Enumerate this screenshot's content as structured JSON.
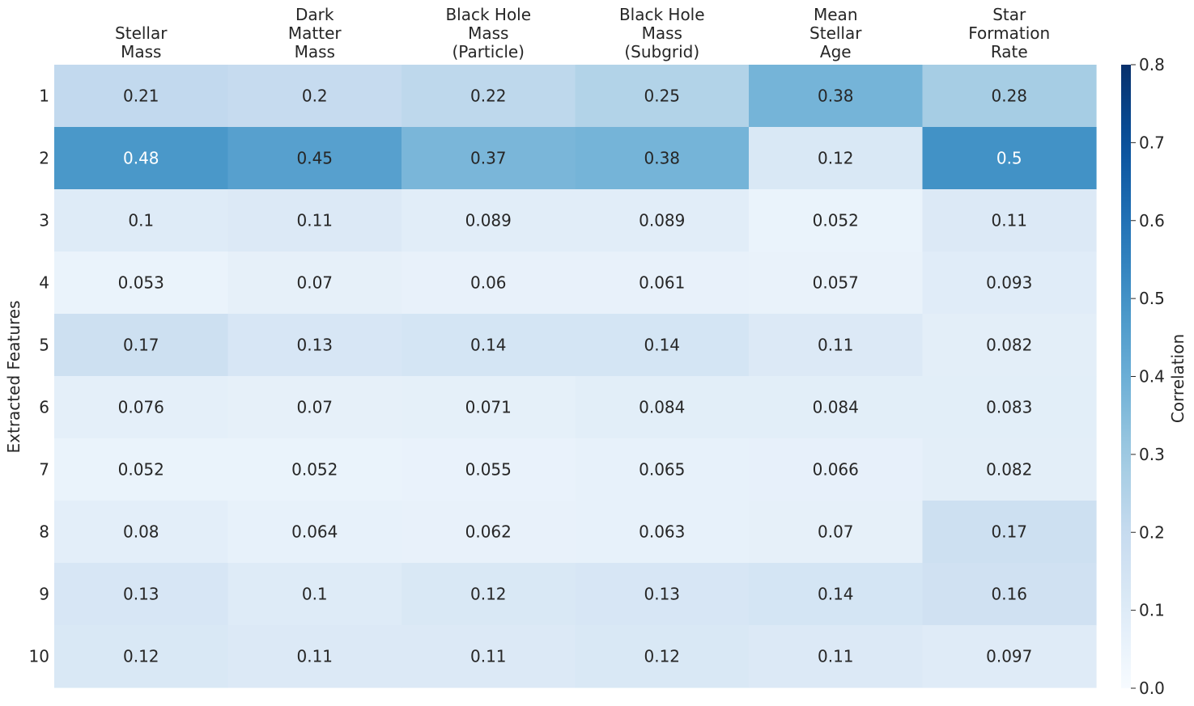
{
  "chart_data": {
    "type": "heatmap",
    "title": "",
    "xlabel": "",
    "ylabel": "Extracted Features",
    "columns": [
      [
        "Stellar",
        "Mass"
      ],
      [
        "Dark",
        "Matter",
        "Mass"
      ],
      [
        "Black Hole",
        "Mass",
        "(Particle)"
      ],
      [
        "Black Hole",
        "Mass",
        "(Subgrid)"
      ],
      [
        "Mean",
        "Stellar",
        "Age"
      ],
      [
        "Star",
        "Formation",
        "Rate"
      ]
    ],
    "rows": [
      "1",
      "2",
      "3",
      "4",
      "5",
      "6",
      "7",
      "8",
      "9",
      "10"
    ],
    "values": [
      [
        0.21,
        0.2,
        0.22,
        0.25,
        0.38,
        0.28
      ],
      [
        0.48,
        0.45,
        0.37,
        0.38,
        0.12,
        0.5
      ],
      [
        0.1,
        0.11,
        0.089,
        0.089,
        0.052,
        0.11
      ],
      [
        0.053,
        0.07,
        0.06,
        0.061,
        0.057,
        0.093
      ],
      [
        0.17,
        0.13,
        0.14,
        0.14,
        0.11,
        0.082
      ],
      [
        0.076,
        0.07,
        0.071,
        0.084,
        0.084,
        0.083
      ],
      [
        0.052,
        0.052,
        0.055,
        0.065,
        0.066,
        0.082
      ],
      [
        0.08,
        0.064,
        0.062,
        0.063,
        0.07,
        0.17
      ],
      [
        0.13,
        0.1,
        0.12,
        0.13,
        0.14,
        0.16
      ],
      [
        0.12,
        0.11,
        0.11,
        0.12,
        0.11,
        0.097
      ]
    ],
    "colorbar": {
      "label": "Correlation",
      "range": [
        0,
        0.8
      ],
      "ticks": [
        "0.0",
        "0.1",
        "0.2",
        "0.3",
        "0.4",
        "0.5",
        "0.6",
        "0.7",
        "0.8"
      ],
      "colormap": "Blues"
    },
    "grid": false
  }
}
